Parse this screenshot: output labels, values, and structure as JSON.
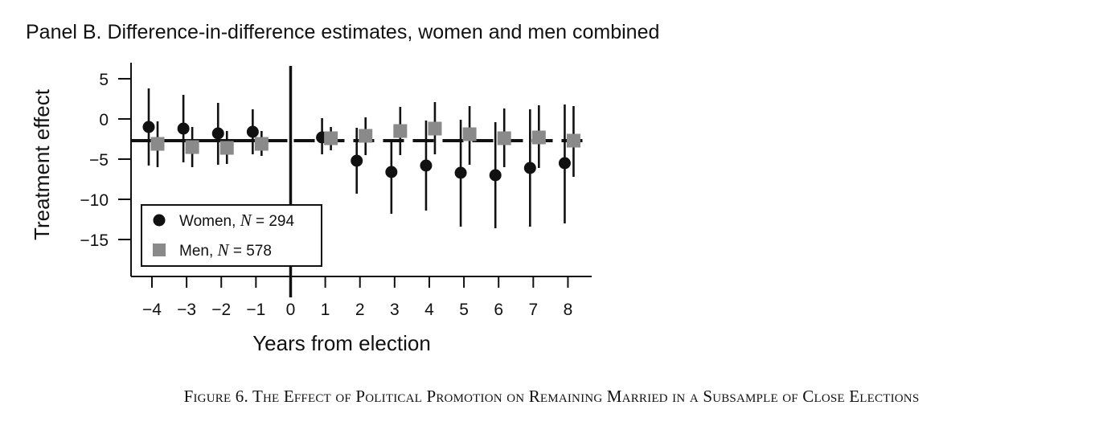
{
  "panel_title": "Panel B. Difference-in-difference estimates, women and men combined",
  "caption": "Figure 6. The Effect of Political Promotion on Remaining Married in a Subsample of Close Elections",
  "colors": {
    "women": "#111111",
    "men": "#8a8a8a",
    "axis": "#111111"
  },
  "chart_data": {
    "type": "scatter",
    "xlabel": "Years from election",
    "ylabel": "Treatment effect",
    "x": [
      -4,
      -3,
      -2,
      -1,
      0,
      1,
      2,
      3,
      4,
      5,
      6,
      7,
      8
    ],
    "x_tick_labels": [
      "−4",
      "−3",
      "−2",
      "−1",
      "0",
      "1",
      "2",
      "3",
      "4",
      "5",
      "6",
      "7",
      "8"
    ],
    "y_ticks": [
      5,
      0,
      -5,
      -10,
      -15
    ],
    "y_tick_labels": [
      "5",
      "0",
      "−5",
      "−10",
      "−15"
    ],
    "ylim": [
      -19.5,
      7
    ],
    "xlim": [
      -4.6,
      8.7
    ],
    "reference_line_y": -2.7,
    "event_line_x": 0,
    "legend_position": "bottom-left",
    "series": [
      {
        "name": "Women",
        "n_label": "= 294",
        "marker": "circle",
        "x": [
          -4,
          -3,
          -2,
          -1,
          1,
          2,
          3,
          4,
          5,
          6,
          7,
          8
        ],
        "y": [
          -1.0,
          -1.2,
          -1.8,
          -1.6,
          -2.3,
          -5.2,
          -6.6,
          -5.8,
          -6.7,
          -7.0,
          -6.1,
          -5.5
        ],
        "ci_low": [
          -5.8,
          -5.4,
          -5.7,
          -4.4,
          -4.4,
          -9.3,
          -11.8,
          -11.4,
          -13.4,
          -13.6,
          -13.4,
          -13.0
        ],
        "ci_high": [
          3.8,
          3.0,
          2.0,
          1.2,
          0.1,
          -1.1,
          -2.7,
          -0.2,
          -0.1,
          -0.4,
          1.2,
          1.8
        ]
      },
      {
        "name": "Men",
        "n_label": "= 578",
        "marker": "square",
        "x": [
          -4,
          -3,
          -2,
          -1,
          1,
          2,
          3,
          4,
          5,
          6,
          7,
          8
        ],
        "y": [
          -3.1,
          -3.5,
          -3.6,
          -3.1,
          -2.4,
          -2.1,
          -1.5,
          -1.2,
          -1.9,
          -2.4,
          -2.3,
          -2.7
        ],
        "ci_low": [
          -6.0,
          -6.0,
          -5.6,
          -4.6,
          -3.9,
          -4.5,
          -4.5,
          -4.4,
          -5.7,
          -6.0,
          -6.1,
          -7.2
        ],
        "ci_high": [
          -0.3,
          -1.0,
          -1.5,
          -1.5,
          -1.0,
          0.2,
          1.5,
          2.1,
          1.6,
          1.3,
          1.7,
          1.6
        ]
      }
    ]
  }
}
